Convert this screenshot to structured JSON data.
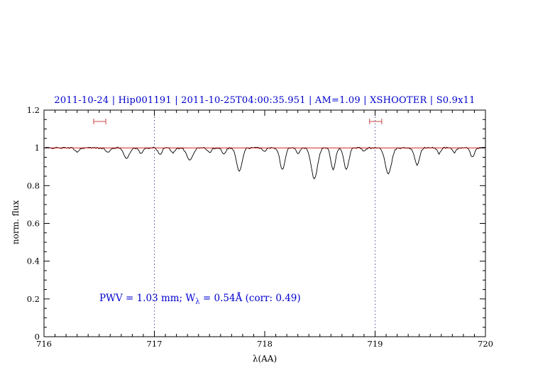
{
  "title": "2011-10-24 | Hip001191 | 2011-10-25T04:00:35.951 | AM=1.09 | XSHOOTER | S0.9x11",
  "annotation": {
    "prefix": "PWV = 1.03 mm; W",
    "subscript": "λ",
    "suffix": " = 0.54Å (corr: 0.49)"
  },
  "chart_data": {
    "type": "line",
    "title": "2011-10-24 | Hip001191 | 2011-10-25T04:00:35.951 | AM=1.09 | XSHOOTER | S0.9x11",
    "xlabel": "λ(AA)",
    "ylabel": "norm. flux",
    "xlim": [
      716,
      720
    ],
    "ylim": [
      0,
      1.2
    ],
    "x_ticks": [
      716,
      717,
      718,
      719,
      720
    ],
    "x_tick_labels": [
      "716",
      "717",
      "718",
      "719",
      "720"
    ],
    "y_ticks": [
      0,
      0.2,
      0.4,
      0.6,
      0.8,
      1.0,
      1.2
    ],
    "y_tick_labels": [
      "0",
      "0.2",
      "0.4",
      "0.6",
      "0.8",
      "1",
      "1.2"
    ],
    "x_minor_step": 0.1,
    "y_minor_step": 0.05,
    "grid": false,
    "vlines": [
      717,
      719
    ],
    "continuum_y": 1.0,
    "region_markers": [
      {
        "x1": 716.45,
        "x2": 716.56,
        "y": 1.14
      },
      {
        "x1": 718.95,
        "x2": 719.06,
        "y": 1.14
      }
    ],
    "spectrum": {
      "x_start": 716.0,
      "x_end": 720.0,
      "x_step": 0.01,
      "baseline": 1.0,
      "noise_amp": 0.004,
      "noise_seed": 42,
      "features": [
        [
          716.3,
          0.02,
          0.02
        ],
        [
          716.58,
          0.025,
          0.02
        ],
        [
          716.75,
          0.055,
          0.025
        ],
        [
          716.88,
          0.03,
          0.018
        ],
        [
          717.05,
          0.035,
          0.018
        ],
        [
          717.17,
          0.025,
          0.018
        ],
        [
          717.32,
          0.065,
          0.028
        ],
        [
          717.5,
          0.025,
          0.018
        ],
        [
          717.63,
          0.03,
          0.018
        ],
        [
          717.77,
          0.125,
          0.025
        ],
        [
          718.0,
          0.02,
          0.015
        ],
        [
          718.16,
          0.115,
          0.022
        ],
        [
          718.3,
          0.03,
          0.015
        ],
        [
          718.45,
          0.165,
          0.028
        ],
        [
          718.62,
          0.115,
          0.02
        ],
        [
          718.74,
          0.115,
          0.022
        ],
        [
          718.9,
          0.02,
          0.015
        ],
        [
          719.12,
          0.14,
          0.028
        ],
        [
          719.38,
          0.09,
          0.022
        ],
        [
          719.58,
          0.03,
          0.015
        ],
        [
          719.72,
          0.025,
          0.015
        ],
        [
          719.88,
          0.05,
          0.018
        ]
      ]
    },
    "colors": {
      "spectrum": "#000000",
      "continuum": "#cc0000",
      "markers": "#cc4444",
      "vline": "#3b3b8c",
      "frame": "#000000",
      "title_text": "#0000cd",
      "annotation_text": "#0000cd"
    },
    "legend": null
  }
}
